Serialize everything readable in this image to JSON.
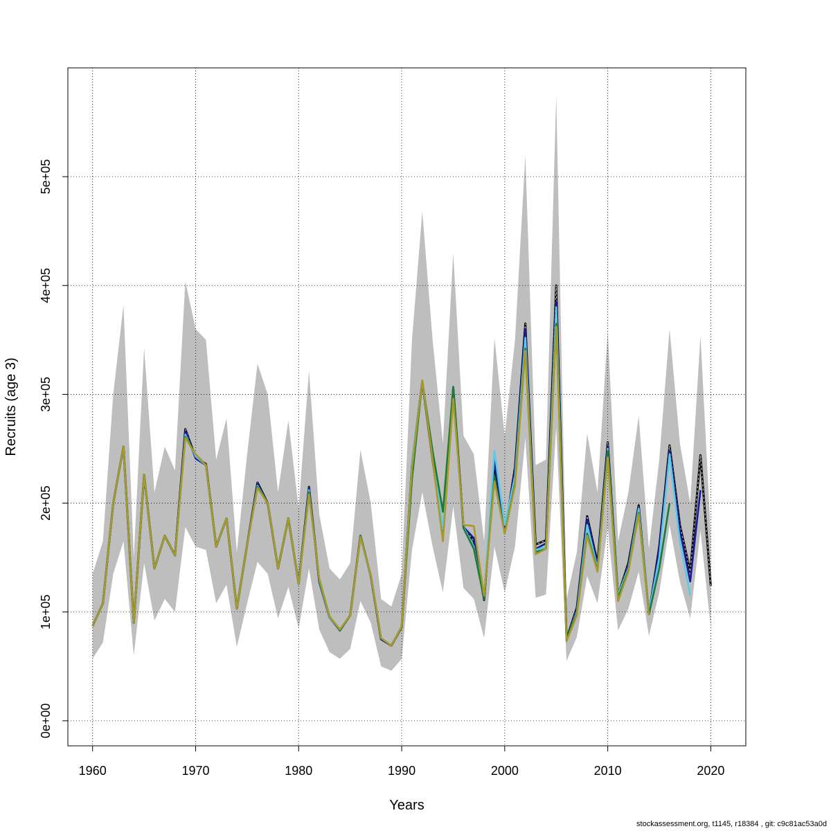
{
  "chart_data": {
    "type": "line",
    "title": "",
    "xlabel": "Years",
    "ylabel": "Recruits (age 3)",
    "xlim": [
      1957.6,
      2023.4
    ],
    "ylim": [
      -23000,
      600000
    ],
    "x_ticks": [
      1960,
      1970,
      1980,
      1990,
      2000,
      2010,
      2020
    ],
    "y_ticks": [
      0,
      100000,
      200000,
      300000,
      400000,
      500000
    ],
    "y_tick_labels": [
      "0e+00",
      "1e+05",
      "2e+05",
      "3e+05",
      "4e+05",
      "5e+05"
    ],
    "grid": true,
    "legend": "none",
    "ribbon_color": "#bebebe",
    "years": [
      1960,
      1961,
      1962,
      1963,
      1964,
      1965,
      1966,
      1967,
      1968,
      1969,
      1970,
      1971,
      1972,
      1973,
      1974,
      1975,
      1976,
      1977,
      1978,
      1979,
      1980,
      1981,
      1982,
      1983,
      1984,
      1985,
      1986,
      1987,
      1988,
      1989,
      1990,
      1991,
      1992,
      1993,
      1994,
      1995,
      1996,
      1997,
      1998,
      1999,
      2000,
      2001,
      2002,
      2003,
      2004,
      2005,
      2006,
      2007,
      2008,
      2009,
      2010,
      2011,
      2012,
      2013,
      2014,
      2015,
      2016,
      2017,
      2018,
      2019,
      2020
    ],
    "upper": [
      135000,
      165000,
      300000,
      382000,
      150000,
      343000,
      210000,
      252000,
      230000,
      404000,
      360000,
      350000,
      240000,
      278000,
      155000,
      245000,
      328000,
      300000,
      210000,
      276000,
      195000,
      322000,
      190000,
      140000,
      130000,
      145000,
      249000,
      200000,
      112000,
      105000,
      135000,
      350000,
      468000,
      350000,
      255000,
      430000,
      262000,
      245000,
      165000,
      352000,
      262000,
      350000,
      520000,
      235000,
      240000,
      575000,
      112000,
      155000,
      264000,
      210000,
      358000,
      165000,
      210000,
      280000,
      158000,
      240000,
      360000,
      255000,
      200000,
      354000,
      170000
    ],
    "lower": [
      57000,
      72000,
      135000,
      165000,
      60000,
      145000,
      92000,
      112000,
      100000,
      178000,
      160000,
      157000,
      108000,
      125000,
      68000,
      108000,
      146000,
      135000,
      94000,
      123000,
      85000,
      140000,
      84000,
      63000,
      57000,
      66000,
      110000,
      90000,
      50000,
      46000,
      57000,
      157000,
      210000,
      160000,
      118000,
      197000,
      122000,
      112000,
      76000,
      160000,
      118000,
      160000,
      260000,
      113000,
      116000,
      270000,
      55000,
      77000,
      133000,
      108000,
      178000,
      83000,
      103000,
      137000,
      78000,
      118000,
      180000,
      128000,
      94000,
      175000,
      85000
    ],
    "series": [
      {
        "color": "#000000",
        "dashed": true,
        "values": [
          87000,
          108000,
          200000,
          252000,
          90000,
          226000,
          140000,
          170000,
          152000,
          268000,
          242000,
          236000,
          160000,
          186000,
          103000,
          162000,
          219000,
          200000,
          140000,
          186000,
          126000,
          215000,
          128000,
          95000,
          83000,
          97000,
          170000,
          133000,
          75000,
          69000,
          86000,
          235000,
          312000,
          240000,
          172000,
          306000,
          178000,
          165000,
          111000,
          236000,
          173000,
          233000,
          365000,
          162000,
          166000,
          400000,
          75000,
          104000,
          188000,
          145000,
          256000,
          115000,
          145000,
          198000,
          98000,
          160000,
          253000,
          180000,
          137000,
          244000,
          124000
        ]
      },
      {
        "color": "#1a1a9c",
        "dashed": false,
        "values": [
          87000,
          108000,
          200000,
          252000,
          90000,
          226000,
          140000,
          170000,
          152000,
          266000,
          241000,
          235000,
          160000,
          186000,
          103000,
          162000,
          218000,
          199000,
          140000,
          186000,
          126000,
          214000,
          128000,
          95000,
          83000,
          97000,
          170000,
          133000,
          75000,
          69000,
          86000,
          235000,
          312000,
          240000,
          172000,
          305000,
          178000,
          168000,
          112000,
          240000,
          175000,
          230000,
          360000,
          158000,
          163000,
          385000,
          74000,
          102000,
          185000,
          143000,
          252000,
          113000,
          143000,
          196000,
          98000,
          158000,
          248000,
          175000,
          128000,
          212000
        ]
      },
      {
        "color": "#5bc8e8",
        "dashed": false,
        "values": [
          87000,
          108000,
          200000,
          252000,
          90000,
          226000,
          140000,
          170000,
          152000,
          263000,
          243000,
          235000,
          160000,
          186000,
          103000,
          162000,
          216000,
          200000,
          140000,
          186000,
          126000,
          212000,
          129000,
          95000,
          83000,
          97000,
          169000,
          133000,
          76000,
          69000,
          86000,
          236000,
          312000,
          243000,
          176000,
          300000,
          178000,
          160000,
          112000,
          248000,
          180000,
          225000,
          352000,
          157000,
          160000,
          380000,
          75000,
          100000,
          180000,
          140000,
          250000,
          116000,
          140000,
          195000,
          100000,
          150000,
          245000,
          165000,
          115000
        ]
      },
      {
        "color": "#1a7a3a",
        "dashed": false,
        "values": [
          87000,
          108000,
          200000,
          252000,
          90000,
          226000,
          140000,
          170000,
          152000,
          261000,
          245000,
          235000,
          160000,
          186000,
          103000,
          162000,
          215000,
          200000,
          140000,
          186000,
          126000,
          210000,
          130000,
          96000,
          83000,
          97000,
          170000,
          134000,
          76000,
          69000,
          86000,
          222000,
          312000,
          248000,
          192000,
          307000,
          177000,
          158000,
          112000,
          225000,
          172000,
          218000,
          342000,
          155000,
          158000,
          365000,
          76000,
          98000,
          172000,
          138000,
          248000,
          113000,
          138000,
          191000,
          98000,
          140000,
          200000
        ]
      },
      {
        "color": "#a89a2a",
        "dashed": false,
        "values": [
          87000,
          108000,
          200000,
          252000,
          90000,
          226000,
          140000,
          170000,
          152000,
          260000,
          245000,
          235000,
          160000,
          186000,
          103000,
          162000,
          214000,
          200000,
          140000,
          186000,
          126000,
          208000,
          131000,
          96000,
          84000,
          97000,
          169000,
          134000,
          76000,
          69000,
          87000,
          232000,
          313000,
          240000,
          165000,
          296000,
          180000,
          179000,
          115000,
          220000,
          172000,
          216000,
          340000,
          153000,
          158000,
          362000,
          73000,
          97000,
          170000,
          137000,
          242000,
          110000,
          137000,
          190000,
          97000
        ]
      }
    ]
  },
  "footer": "stockassessment.org, t1145, r18384 , git: c9c81ac53a0d"
}
